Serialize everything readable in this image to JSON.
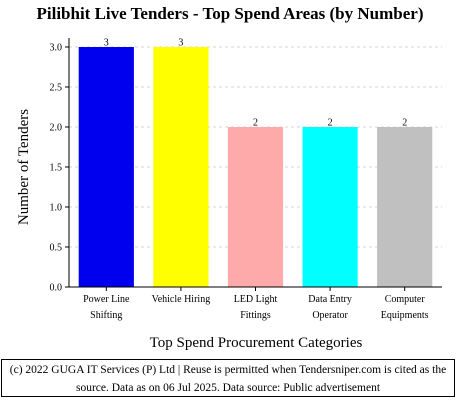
{
  "chart_data": {
    "type": "bar",
    "title": "Pilibhit Live Tenders - Top Spend Areas (by Number)",
    "xlabel": "Top Spend Procurement Categories",
    "ylabel": "Number of Tenders",
    "categories": [
      [
        "Power Line",
        "Shifting"
      ],
      [
        "Vehicle Hiring"
      ],
      [
        "LED Light",
        "Fittings"
      ],
      [
        "Data Entry",
        "Operator"
      ],
      [
        "Computer",
        "Equipments"
      ]
    ],
    "values": [
      3,
      3,
      2,
      2,
      2
    ],
    "colors": [
      "#0000ee",
      "#ffff00",
      "#ffaaaa",
      "#00ffff",
      "#c0c0c0"
    ],
    "ylim": [
      0,
      3.0
    ],
    "yticks": [
      "0.0",
      "0.5",
      "1.0",
      "1.5",
      "2.0",
      "2.5",
      "3.0"
    ],
    "grid": true,
    "legend": "none"
  },
  "footer": {
    "line1": "(c) 2022 GUGA IT Services (P) Ltd | Reuse is permitted when Tendersniper.com is cited as the",
    "line2": "source. Data as on 06 Jul 2025. Data source: Public advertisement"
  }
}
